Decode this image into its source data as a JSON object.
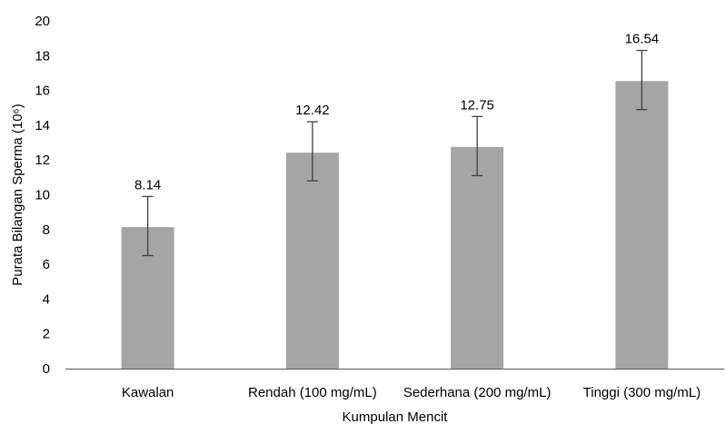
{
  "chart_data": {
    "type": "bar",
    "title": "",
    "xlabel": "Kumpulan Mencit",
    "ylabel": "Purata Bilangan Sperma (10⁶)",
    "categories": [
      "Kawalan",
      "Rendah (100 mg/mL)",
      "Sederhana (200 mg/mL)",
      "Tinggi (300 mg/mL)"
    ],
    "values": [
      8.14,
      12.42,
      12.75,
      16.54
    ],
    "data_labels": [
      "8.14",
      "12.42",
      "12.75",
      "16.54"
    ],
    "error_bars": [
      {
        "low": 6.5,
        "high": 9.9
      },
      {
        "low": 10.8,
        "high": 14.2
      },
      {
        "low": 11.1,
        "high": 14.5
      },
      {
        "low": 14.9,
        "high": 18.3
      }
    ],
    "ylim": [
      0,
      20
    ],
    "y_ticks": [
      0,
      2,
      4,
      6,
      8,
      10,
      12,
      14,
      16,
      18,
      20
    ],
    "grid": false,
    "legend": "none",
    "colors": {
      "bar": "#a5a5a5",
      "axis": "#595959",
      "error_bar": "#404040",
      "text": "#000000"
    }
  }
}
